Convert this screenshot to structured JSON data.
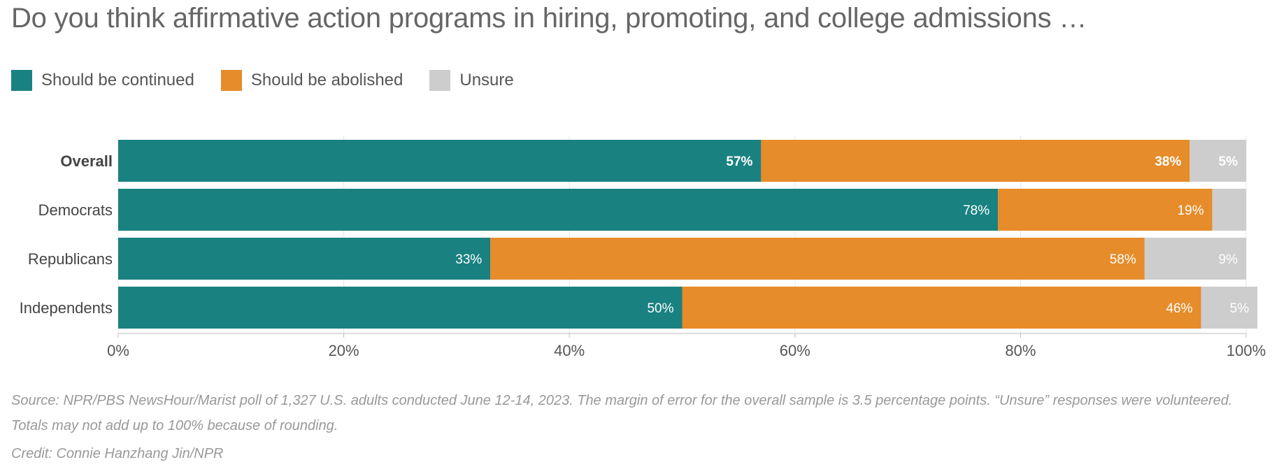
{
  "header": {
    "title": "Do you think affirmative action programs in hiring, promoting, and college admissions …"
  },
  "colors": {
    "continued": "#1a8181",
    "abolished": "#e68c2a",
    "unsure": "#cdcdcd"
  },
  "footer": {
    "source": "Source: NPR/PBS NewsHour/Marist poll of 1,327 U.S. adults conducted June 12-14, 2023. The margin of error for the overall sample is 3.5 percentage points. “Unsure” responses were volunteered. Totals may not add up to 100% because of rounding.",
    "credit": "Credit: Connie Hanzhang Jin/NPR"
  },
  "chart_data": {
    "type": "bar",
    "orientation": "horizontal",
    "stacked": true,
    "categories": [
      "Overall",
      "Democrats",
      "Republicans",
      "Independents"
    ],
    "bold_categories": [
      "Overall"
    ],
    "series": [
      {
        "name": "Should be continued",
        "values": [
          57,
          78,
          33,
          50
        ],
        "labels": [
          "57%",
          "78%",
          "33%",
          "50%"
        ],
        "color": "#1a8181"
      },
      {
        "name": "Should be abolished",
        "values": [
          38,
          19,
          58,
          46
        ],
        "labels": [
          "38%",
          "19%",
          "58%",
          "46%"
        ],
        "color": "#e68c2a"
      },
      {
        "name": "Unsure",
        "values": [
          5,
          3,
          9,
          5
        ],
        "labels": [
          "5%",
          "",
          "9%",
          "5%"
        ],
        "color": "#cdcdcd"
      }
    ],
    "xlim": [
      0,
      100
    ],
    "xticks": [
      "0%",
      "20%",
      "40%",
      "60%",
      "80%",
      "100%"
    ],
    "grid": true,
    "legend": "top-left"
  }
}
